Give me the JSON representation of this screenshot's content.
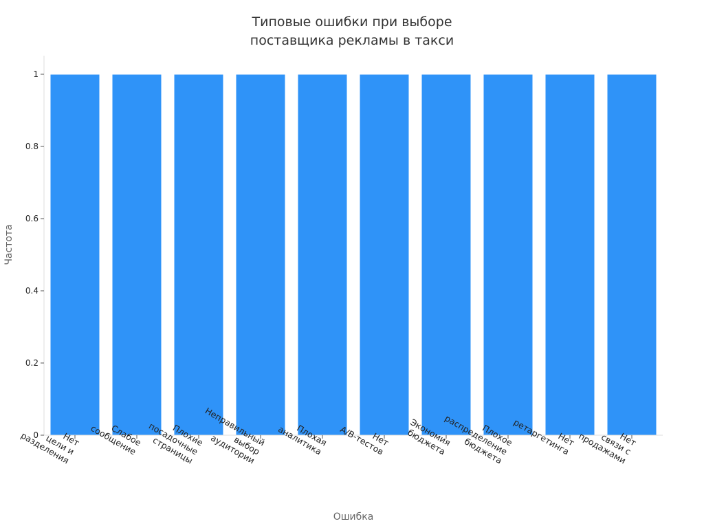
{
  "chart_data": {
    "type": "bar",
    "title_lines": [
      "Типовые ошибки при выборе",
      "поставщика рекламы в такси"
    ],
    "xlabel": "Ошибка",
    "ylabel": "Частота",
    "categories": [
      [
        "Нет",
        "цели и",
        "разделения"
      ],
      [
        "Слабое",
        "сообщение"
      ],
      [
        "Плохие",
        "посадочные",
        "страницы"
      ],
      [
        "Неправильный",
        "выбор",
        "аудитории"
      ],
      [
        "Плохая",
        "аналитика"
      ],
      [
        "Нет",
        "A/B-тестов"
      ],
      [
        "Экономия",
        "бюджета"
      ],
      [
        "Плохое",
        "распределение",
        "бюджета"
      ],
      [
        "Нет",
        "ретаргетинга"
      ],
      [
        "Нет",
        "связи с",
        "продажами"
      ]
    ],
    "values": [
      1,
      1,
      1,
      1,
      1,
      1,
      1,
      1,
      1,
      1
    ],
    "ylim": [
      0,
      1
    ],
    "yticks": [
      0,
      0.2,
      0.4,
      0.6,
      0.8,
      1
    ],
    "ytick_labels": [
      "0",
      "0.2",
      "0.4",
      "0.6",
      "0.8",
      "1"
    ],
    "grid": false,
    "bar_color": "#2f93f8",
    "axis_color": "#dddddd"
  }
}
